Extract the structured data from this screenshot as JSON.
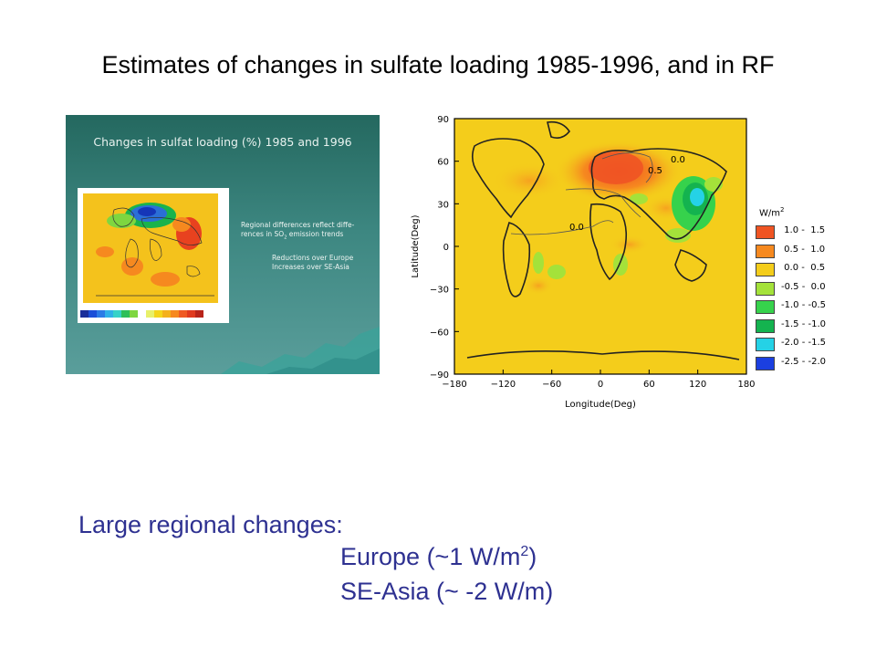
{
  "slide": {
    "title": "Estimates of changes in sulfate loading 1985-1996, and in RF"
  },
  "inset": {
    "title": "Changes in sulfat loading (%) 1985 and 1996",
    "note_line1": "Regional differences reflect diffe-",
    "note_line2_pre": "rences in SO",
    "note_line2_sub": "2",
    "note_line2_post": " emission trends",
    "note2_line1": "Reductions over Europe",
    "note2_line2": "Increases over SE-Asia"
  },
  "rf_map": {
    "ylabel": "Latitude(Deg)",
    "xlabel": "Longitude(Deg)",
    "xticks": [
      "−180",
      "−120",
      "−60",
      "0",
      "60",
      "120",
      "180"
    ],
    "yticks": [
      "90",
      "60",
      "30",
      "0",
      "−30",
      "−60",
      "−90"
    ],
    "contour_labels": [
      "0.5",
      "0.0",
      "0.0"
    ],
    "legend_title": "W/m",
    "legend_title_sup": "2",
    "legend": [
      {
        "label": " 1.0 -  1.5",
        "color": "#ef5423"
      },
      {
        "label": " 0.5 -  1.0",
        "color": "#f6891f"
      },
      {
        "label": " 0.0 -  0.5",
        "color": "#f4cd1b"
      },
      {
        "label": "-0.5 -  0.0",
        "color": "#a4e23a"
      },
      {
        "label": "-1.0 - -0.5",
        "color": "#36d24c"
      },
      {
        "label": "-1.5 - -1.0",
        "color": "#14b34f"
      },
      {
        "label": "-2.0 - -1.5",
        "color": "#25d2e6"
      },
      {
        "label": "-2.5 - -2.0",
        "color": "#1b3fe0"
      }
    ]
  },
  "bullets": {
    "line1": "Large regional changes:",
    "line2_pre": "Europe (~1 W/m",
    "line2_sup": "2",
    "line2_post": ")",
    "line3": "SE-Asia (~ -2 W/m)"
  }
}
